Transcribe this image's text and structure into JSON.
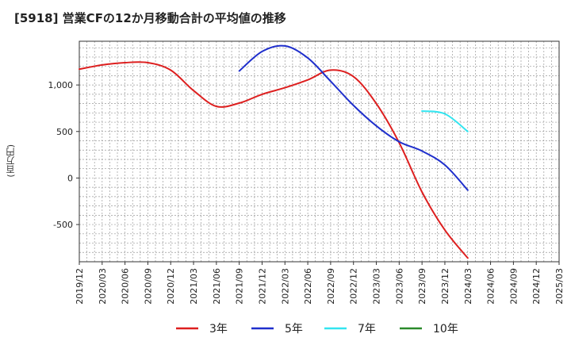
{
  "chart_data": {
    "type": "line",
    "title": "[5918]  営業CFの12か月移動合計の平均値の推移",
    "xlabel": "",
    "ylabel": "(百万円)",
    "ylim": [
      -900,
      1470
    ],
    "yticks": [
      -500,
      0,
      500,
      1000
    ],
    "ytick_labels": [
      "-500",
      "0",
      "500",
      "1,000"
    ],
    "xticks": [
      "2019/12",
      "2020/03",
      "2020/06",
      "2020/09",
      "2020/12",
      "2021/03",
      "2021/06",
      "2021/09",
      "2021/12",
      "2022/03",
      "2022/06",
      "2022/09",
      "2022/12",
      "2023/03",
      "2023/06",
      "2023/09",
      "2023/12",
      "2024/03",
      "2024/06",
      "2024/09",
      "2024/12",
      "2025/03"
    ],
    "grid": true,
    "legend_position": "bottom",
    "series": [
      {
        "name": "3年",
        "color": "#dd1f1f",
        "x": [
          "2019/12",
          "2020/03",
          "2020/06",
          "2020/09",
          "2020/12",
          "2021/03",
          "2021/06",
          "2021/09",
          "2021/12",
          "2022/03",
          "2022/06",
          "2022/09",
          "2022/12",
          "2023/03",
          "2023/06",
          "2023/09",
          "2023/12",
          "2024/03"
        ],
        "values": [
          1170,
          1215,
          1240,
          1240,
          1160,
          940,
          770,
          805,
          900,
          970,
          1055,
          1160,
          1090,
          800,
          380,
          -150,
          -560,
          -860
        ]
      },
      {
        "name": "5年",
        "color": "#1f2fcc",
        "x": [
          "2021/09",
          "2021/12",
          "2022/03",
          "2022/06",
          "2022/09",
          "2022/12",
          "2023/03",
          "2023/06",
          "2023/09",
          "2023/12",
          "2024/03"
        ],
        "values": [
          1150,
          1360,
          1420,
          1290,
          1040,
          780,
          560,
          390,
          290,
          140,
          -130
        ]
      },
      {
        "name": "7年",
        "color": "#33e5f0",
        "x": [
          "2023/09",
          "2023/12",
          "2024/03"
        ],
        "values": [
          720,
          690,
          500
        ]
      },
      {
        "name": "10年",
        "color": "#2a8a2a",
        "x": [],
        "values": []
      }
    ]
  }
}
